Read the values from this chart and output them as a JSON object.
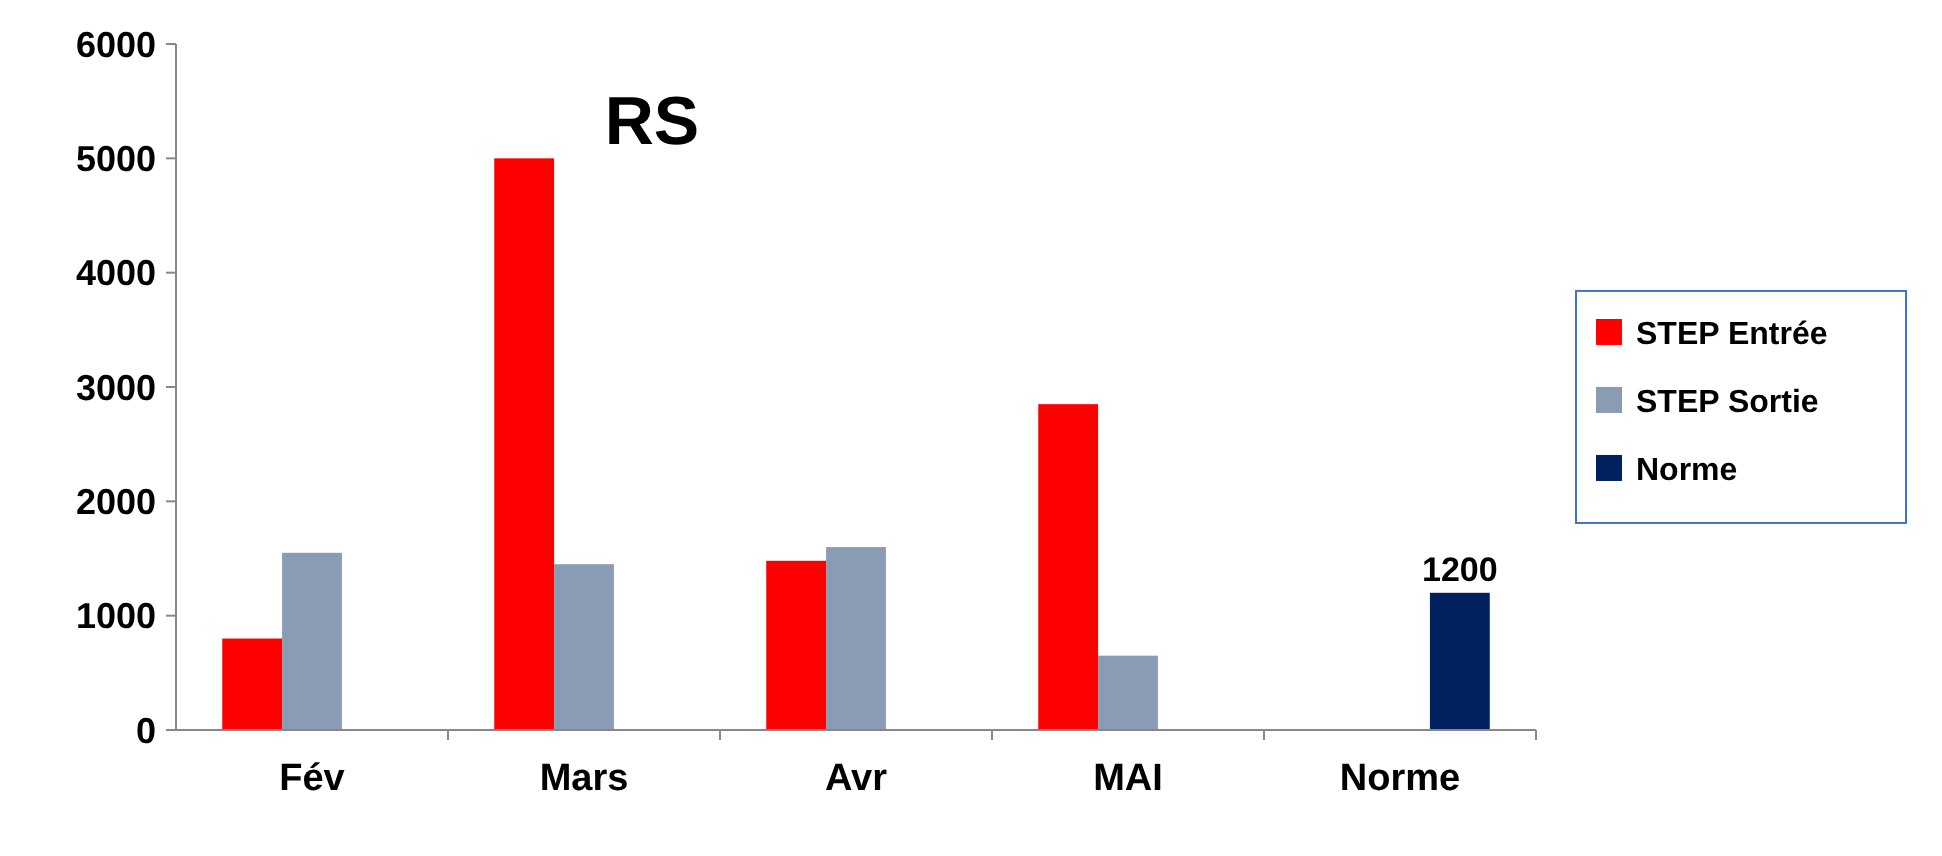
{
  "chart_data": {
    "type": "bar",
    "title": "RS",
    "categories": [
      "Fév",
      "Mars",
      "Avr",
      "MAI",
      "Norme"
    ],
    "series": [
      {
        "name": "STEP Entrée",
        "color": "#ff0000",
        "values": [
          800,
          5000,
          1480,
          2850,
          null
        ]
      },
      {
        "name": "STEP Sortie",
        "color": "#8a9bb4",
        "values": [
          1550,
          1450,
          1600,
          650,
          null
        ]
      },
      {
        "name": "Norme",
        "color": "#002060",
        "values": [
          null,
          null,
          null,
          null,
          1200
        ],
        "value_labels": [
          null,
          null,
          null,
          null,
          "1200"
        ]
      }
    ],
    "ylim": [
      0,
      6000
    ],
    "yticks": [
      0,
      1000,
      2000,
      3000,
      4000,
      5000,
      6000
    ],
    "grid": false,
    "legend": "right"
  }
}
